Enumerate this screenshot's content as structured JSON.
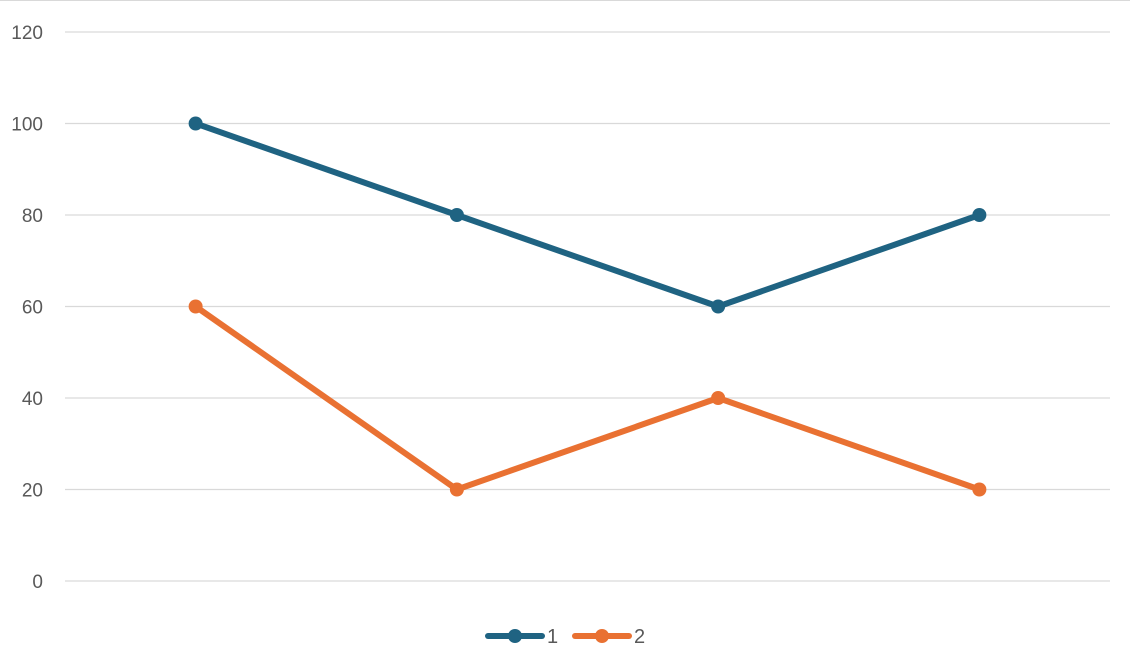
{
  "chart_data": {
    "type": "line",
    "categories": [
      "",
      "",
      "",
      ""
    ],
    "series": [
      {
        "name": "1",
        "values": [
          100,
          80,
          60,
          80
        ],
        "color": "#1f6382"
      },
      {
        "name": "2",
        "values": [
          60,
          20,
          40,
          20
        ],
        "color": "#e97132"
      }
    ],
    "title": "",
    "xlabel": "",
    "ylabel": "",
    "ylim": [
      0,
      120
    ],
    "y_ticks": [
      "0",
      "20",
      "40",
      "60",
      "80",
      "100",
      "120"
    ],
    "grid": true,
    "legend_position": "bottom"
  }
}
